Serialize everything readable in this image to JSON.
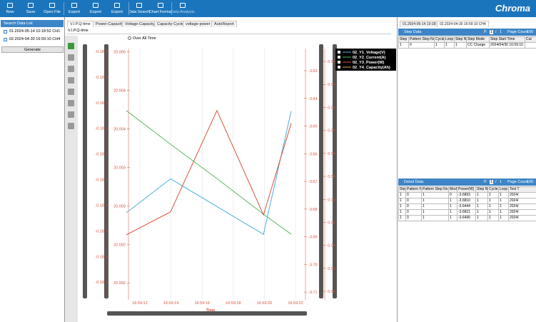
{
  "toolbar": {
    "buttons": [
      "New",
      "Save",
      "Open File",
      "Export",
      "Export",
      "Export",
      "Data Search",
      "Chart Format",
      "Data Analysis"
    ],
    "logo": "Chroma"
  },
  "sidebar": {
    "title": "Search Data List",
    "items": [
      "01.2024-05-14 10:18:52 CH1",
      "02.2024-04-30 16:59:10 CH4"
    ],
    "button": "Generate"
  },
  "chart_tabs": [
    "V.I.P.Q-time",
    "Power-Capacity",
    "Voltage-Capacity",
    "Capacity-Cycle",
    "voltage-power",
    "AutoReport"
  ],
  "chart_subtitle": "V.I.P.Q-time",
  "range_option": "Over All Time",
  "chart": {
    "type": "line",
    "x_label": "Time",
    "x": [
      11.13,
      13.97,
      16.95,
      19.94,
      21.72
    ],
    "xlim": [
      10.58,
      22.5
    ],
    "xticks": [
      {
        "value": 12,
        "label": "16:59:12"
      },
      {
        "value": 14,
        "label": "16:59:14"
      },
      {
        "value": 16,
        "label": "16:59:16"
      },
      {
        "value": 18,
        "label": "16:59:18"
      },
      {
        "value": 20,
        "label": "16:59:20"
      },
      {
        "value": 22,
        "label": "16:59:22"
      }
    ],
    "axes": [
      {
        "ylim": [
          -0.18519,
          -0.17539
        ],
        "yticks": [
          {
            "value": -0.1755,
            "label": "-0.18"
          },
          {
            "value": -0.1765,
            "label": "-0.18"
          },
          {
            "value": -0.1775,
            "label": "-0.18"
          },
          {
            "value": -0.1785,
            "label": "-0.18"
          },
          {
            "value": -0.1795,
            "label": "-0.18"
          },
          {
            "value": -0.1805,
            "label": "-0.18"
          },
          {
            "value": -0.1815,
            "label": "-0.18"
          },
          {
            "value": -0.1825,
            "label": "-0.18"
          },
          {
            "value": -0.1835,
            "label": "-0.18"
          },
          {
            "value": -0.1845,
            "label": "-0.18"
          }
        ]
      },
      {
        "ylim": [
          20.00178,
          20.00504
        ],
        "yticks": [
          {
            "value": 20.005,
            "label": "20.005"
          },
          {
            "value": 20.0045,
            "label": "20.004"
          },
          {
            "value": 20.004,
            "label": "20.004"
          },
          {
            "value": 20.0035,
            "label": "20.003"
          },
          {
            "value": 20.003,
            "label": "20.003"
          },
          {
            "value": 20.0025,
            "label": "20.002"
          },
          {
            "value": 20.002,
            "label": "20.002"
          }
        ]
      },
      {
        "ylim": [
          -3.7128,
          -3.622
        ],
        "yticks": [
          -3.63,
          -3.64,
          -3.65,
          -3.66,
          -3.67,
          -3.68,
          -3.69,
          {
            "value": -3.7,
            "label": "-3.70"
          },
          -3.71
        ]
      },
      {
        "ylim": [
          -0.00537,
          0.00556
        ],
        "yticks": [
          {
            "value": 0.005,
            "label": "0.00"
          },
          {
            "value": 0.004,
            "label": "0.00"
          },
          {
            "value": 0.003,
            "label": "0.00"
          },
          {
            "value": 0.002,
            "label": "0.00"
          },
          {
            "value": 0.001,
            "label": "0.00"
          },
          {
            "value": 0,
            "label": "0.00"
          },
          {
            "value": -0.001,
            "label": "0.00"
          },
          {
            "value": -0.002,
            "label": "0.00"
          },
          {
            "value": -0.003,
            "label": "0.00"
          },
          {
            "value": -0.004,
            "label": "0.00"
          },
          {
            "value": -0.005,
            "label": "0.00"
          }
        ]
      }
    ],
    "series": [
      {
        "name": "02_Y1_Voltage(V)",
        "color": "#4ab0dc",
        "axis": 1,
        "values": [
          20.00291,
          20.00335,
          20.00299,
          20.00263,
          20.00423
        ]
      },
      {
        "name": "02_Y2_Current(A)",
        "color": "#5cb85c",
        "axis": 0,
        "values": [
          -0.17781,
          -0.17912,
          -0.18046,
          -0.18185,
          -0.18263
        ]
      },
      {
        "name": "02_Y3_Power(W)",
        "color": "#d9503a",
        "axis": 2,
        "values": [
          -3.6893,
          -3.681,
          -3.6444,
          -3.6821,
          -3.649
        ]
      },
      {
        "name": "02_Y4_Capacity(Ah)",
        "color": "#e0b040",
        "axis": 3
      }
    ],
    "grid": true,
    "legend": "top-right"
  },
  "data_tabs": [
    "01.2024-05-14 10:18:52 CH1",
    "02.2024-04-30 16:59:10 CH4"
  ],
  "step_data": {
    "title": "Step Data",
    "pager": [
      "P.",
      "1",
      "/",
      "1",
      "Page Count",
      "100"
    ],
    "columns": [
      "Step",
      "Pattern Step No.",
      "Cycle",
      "Loop",
      "Step No.",
      "Step Mode",
      "Step Start Time",
      "Cut"
    ],
    "rows": [
      [
        "1",
        "0",
        "1",
        "1",
        "1",
        "CC Charge",
        "2024/04/30 16:59:10",
        ""
      ]
    ]
  },
  "detail_data": {
    "title": "Detail Data",
    "pager": [
      "P.",
      "1",
      "/",
      "1",
      "Page Count",
      "100"
    ],
    "columns": [
      "Step",
      "Pattern No.",
      "Pattern Step No.",
      "Mode",
      "Power(W)",
      "Step No.",
      "Cycle",
      "Loop",
      "Test T"
    ],
    "rows": [
      [
        "1",
        "0",
        "1",
        "0",
        "-3.6893",
        "1",
        "1",
        "1",
        "2024/"
      ],
      [
        "1",
        "0",
        "1",
        "1",
        "-3.6810",
        "1",
        "1",
        "1",
        "2024/"
      ],
      [
        "1",
        "0",
        "1",
        "1",
        "-3.6444",
        "1",
        "1",
        "1",
        "2024/"
      ],
      [
        "1",
        "0",
        "1",
        "1",
        "-3.6821",
        "1",
        "1",
        "1",
        "2024/"
      ],
      [
        "1",
        "0",
        "1",
        "1",
        "-3.6490",
        "1",
        "1",
        "1",
        "2024/"
      ]
    ]
  }
}
